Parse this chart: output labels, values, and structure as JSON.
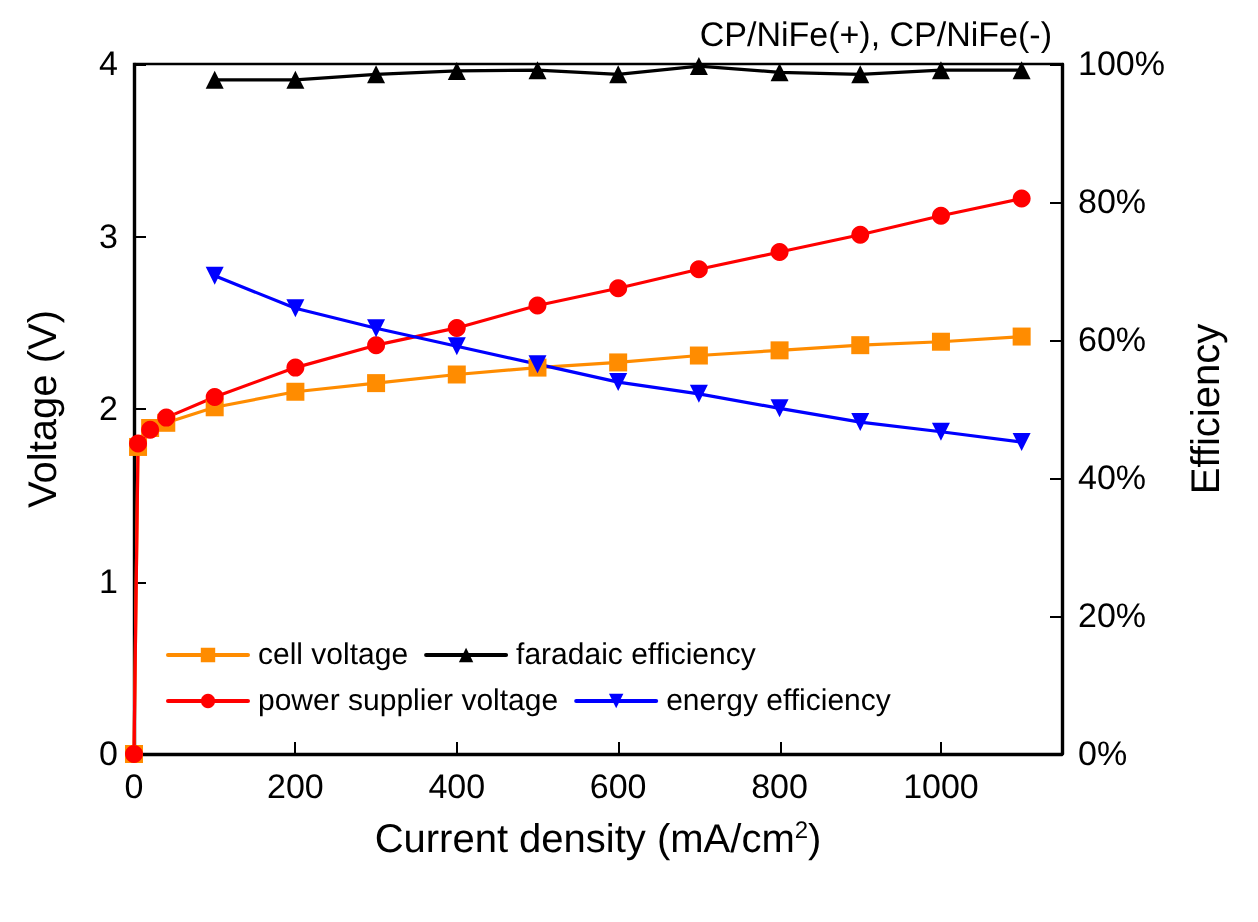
{
  "chart_data": {
    "type": "line",
    "title": "CP/NiFe(+), CP/NiFe(-)",
    "xlabel": "Current density (mA/cm$^{2}$)",
    "ylabel": "Voltage (V)",
    "y2label": "Efficiency",
    "xlim": [
      0,
      1150
    ],
    "xticks": [
      0,
      200,
      400,
      600,
      800,
      1000
    ],
    "ylim": [
      0,
      4
    ],
    "yticks": [
      0,
      1,
      2,
      3,
      4
    ],
    "y2lim": [
      0,
      100
    ],
    "y2ticks": [
      {
        "value": 0,
        "label": "0%"
      },
      {
        "value": 20,
        "label": "20%"
      },
      {
        "value": 40,
        "label": "40%"
      },
      {
        "value": 60,
        "label": "60%"
      },
      {
        "value": 80,
        "label": "80%"
      },
      {
        "value": 100,
        "label": "100%"
      }
    ],
    "legend": "bottom",
    "grid": false,
    "line_style": "solid",
    "series": [
      {
        "name": "cell voltage",
        "color": "#ff8c00",
        "marker": "square",
        "x": [
          0,
          5,
          20,
          40,
          100,
          200,
          300,
          400,
          500,
          600,
          700,
          800,
          900,
          1000,
          1100
        ],
        "values": [
          0,
          1.78,
          1.89,
          1.92,
          2.01,
          2.1,
          2.15,
          2.2,
          2.24,
          2.27,
          2.31,
          2.34,
          2.37,
          2.39,
          2.42
        ]
      },
      {
        "name": "power supplier voltage",
        "color": "#ff0000",
        "marker": "circle",
        "x": [
          0,
          5,
          20,
          40,
          100,
          200,
          300,
          400,
          500,
          600,
          700,
          800,
          900,
          1000,
          1100
        ],
        "values": [
          0,
          1.8,
          1.88,
          1.95,
          2.07,
          2.24,
          2.37,
          2.47,
          2.6,
          2.7,
          2.81,
          2.91,
          3.01,
          3.12,
          3.22
        ]
      },
      {
        "name": "faradaic efficiency",
        "color": "#000000",
        "marker": "triangle",
        "axis": "y2",
        "x": [
          100,
          200,
          300,
          400,
          500,
          600,
          700,
          800,
          900,
          1000,
          1100
        ],
        "values": [
          97.7,
          97.7,
          98.5,
          99,
          99.1,
          98.5,
          99.7,
          98.8,
          98.5,
          99.1,
          99.1
        ]
      },
      {
        "name": "energy efficiency",
        "color": "#0000ff",
        "marker": "triangle-down",
        "axis": "y2",
        "x": [
          100,
          200,
          300,
          400,
          500,
          600,
          700,
          800,
          900,
          1000,
          1100
        ],
        "values": [
          69.3,
          64.6,
          61.7,
          59.1,
          56.5,
          53.9,
          52.2,
          50.1,
          48.1,
          46.7,
          45.2
        ]
      }
    ]
  }
}
